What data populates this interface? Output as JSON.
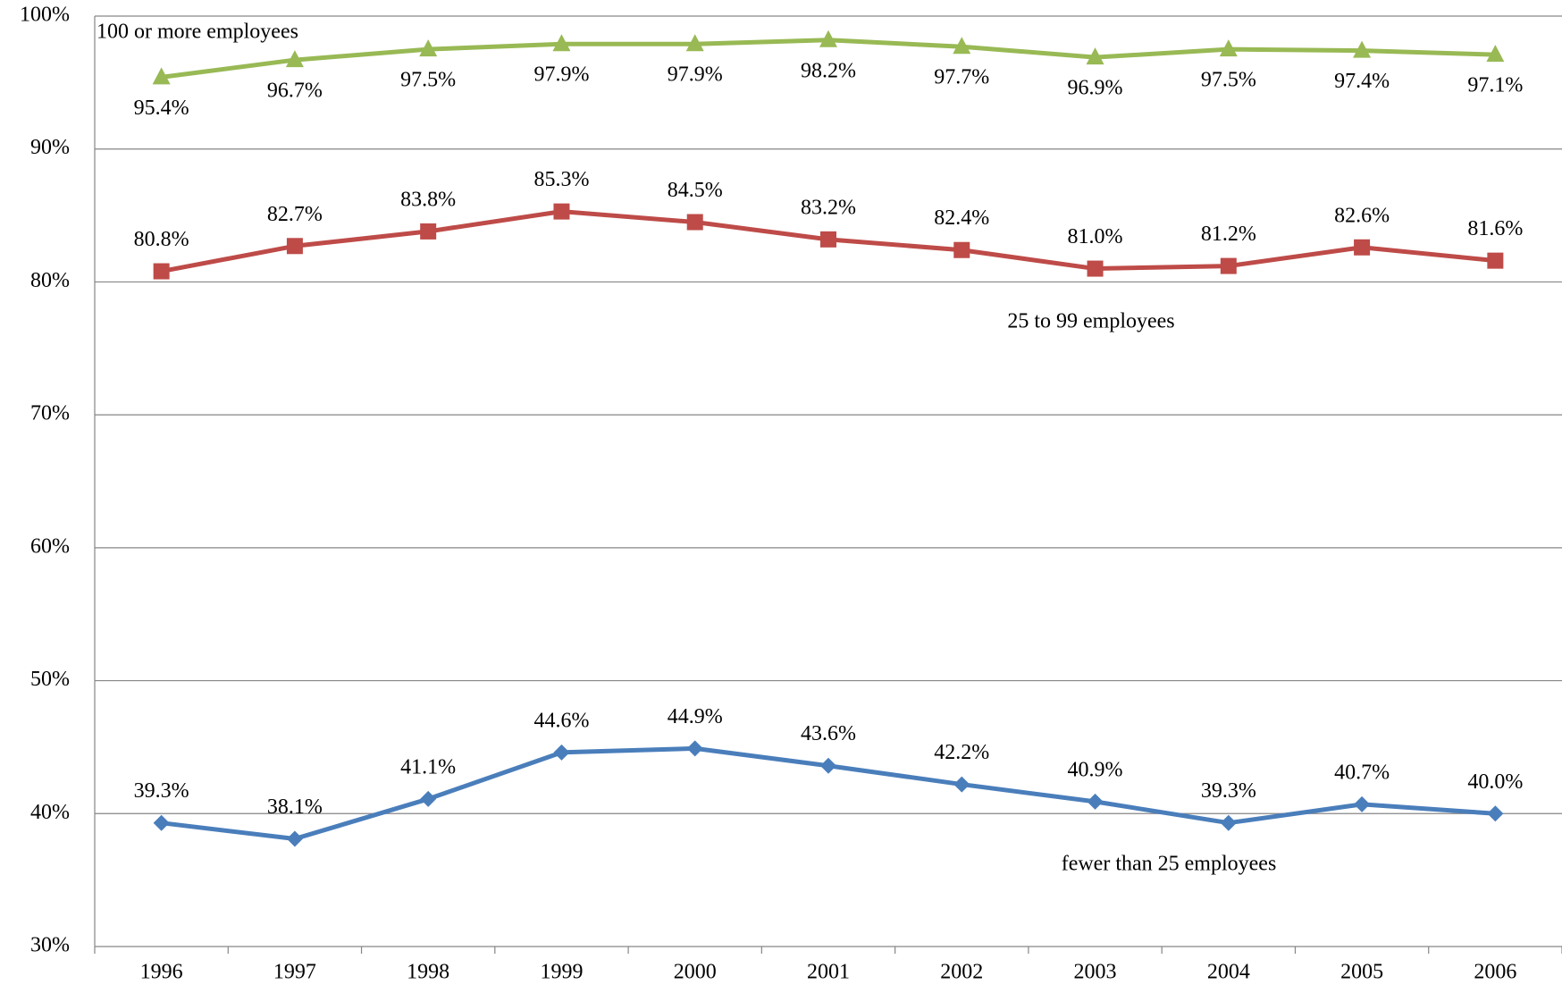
{
  "chart_data": {
    "type": "line",
    "categories": [
      "1996",
      "1997",
      "1998",
      "1999",
      "2000",
      "2001",
      "2002",
      "2003",
      "2004",
      "2005",
      "2006"
    ],
    "ylim": [
      30,
      100
    ],
    "yticks": [
      {
        "value": 30,
        "label": "30%"
      },
      {
        "value": 40,
        "label": "40%"
      },
      {
        "value": 50,
        "label": "50%"
      },
      {
        "value": 60,
        "label": "60%"
      },
      {
        "value": 70,
        "label": "70%"
      },
      {
        "value": 80,
        "label": "80%"
      },
      {
        "value": 90,
        "label": "90%"
      },
      {
        "value": 100,
        "label": "100%"
      }
    ],
    "grid": true,
    "series": [
      {
        "name": "fewer than 25 employees",
        "color": "#4a7ebb",
        "marker": "diamond",
        "values": [
          39.3,
          38.1,
          41.1,
          44.6,
          44.9,
          43.6,
          42.2,
          40.9,
          39.3,
          40.7,
          40.0
        ],
        "value_labels": [
          "39.3%",
          "38.1%",
          "41.1%",
          "44.6%",
          "44.9%",
          "43.6%",
          "42.2%",
          "40.9%",
          "39.3%",
          "40.7%",
          "40.0%"
        ]
      },
      {
        "name": "25 to 99 employees",
        "color": "#be4b48",
        "marker": "square",
        "values": [
          80.8,
          82.7,
          83.8,
          85.3,
          84.5,
          83.2,
          82.4,
          81.0,
          81.2,
          82.6,
          81.6
        ],
        "value_labels": [
          "80.8%",
          "82.7%",
          "83.8%",
          "85.3%",
          "84.5%",
          "83.2%",
          "82.4%",
          "81.0%",
          "81.2%",
          "82.6%",
          "81.6%"
        ]
      },
      {
        "name": "100 or more employees",
        "color": "#98b954",
        "marker": "triangle",
        "values": [
          95.4,
          96.7,
          97.5,
          97.9,
          97.9,
          98.2,
          97.7,
          96.9,
          97.5,
          97.4,
          97.1
        ],
        "value_labels": [
          "95.4%",
          "96.7%",
          "97.5%",
          "97.9%",
          "97.9%",
          "98.2%",
          "97.7%",
          "96.9%",
          "97.5%",
          "97.4%",
          "97.1%"
        ]
      }
    ]
  }
}
